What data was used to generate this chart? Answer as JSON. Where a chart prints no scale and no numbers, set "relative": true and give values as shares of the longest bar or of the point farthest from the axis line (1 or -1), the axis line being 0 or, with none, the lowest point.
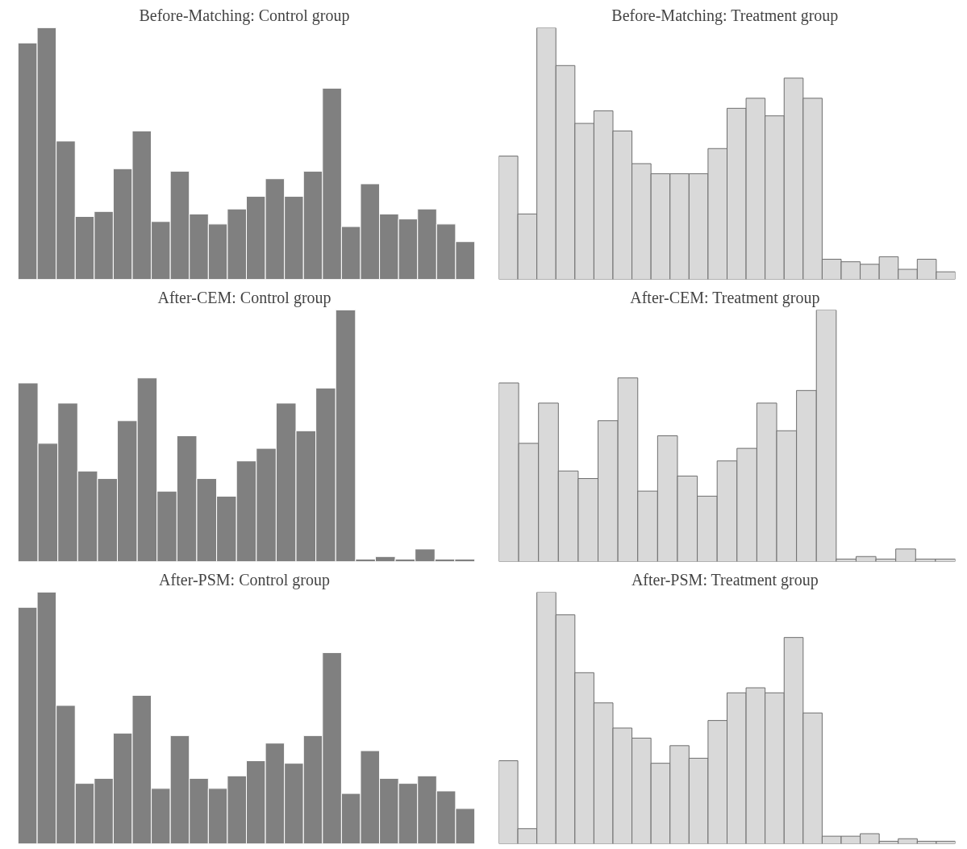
{
  "chart_data": [
    {
      "type": "bar",
      "title": "Before-Matching:  Control group",
      "relative": true,
      "categories": [
        null,
        null,
        null,
        null,
        null,
        null,
        null,
        null,
        null,
        null,
        null,
        null,
        null,
        null,
        null,
        null,
        null,
        null,
        null,
        null,
        null,
        null,
        null,
        null
      ],
      "color": "#808080",
      "values": [
        0.94,
        1,
        0.55,
        0.25,
        0.27,
        0.44,
        0.59,
        0.23,
        0.43,
        0.26,
        0.22,
        0.28,
        0.33,
        0.4,
        0.33,
        0.43,
        0.76,
        0.21,
        0.38,
        0.26,
        0.24,
        0.28,
        0.22,
        0.15
      ]
    },
    {
      "type": "bar",
      "title": "Before-Matching:  Treatment group",
      "relative": true,
      "categories": [
        null,
        null,
        null,
        null,
        null,
        null,
        null,
        null,
        null,
        null,
        null,
        null,
        null,
        null,
        null,
        null,
        null,
        null,
        null,
        null,
        null,
        null,
        null,
        null
      ],
      "color": "#d9d9d9",
      "values": [
        0.49,
        0.26,
        1,
        0.85,
        0.62,
        0.67,
        0.59,
        0.46,
        0.42,
        0.42,
        0.42,
        0.52,
        0.68,
        0.72,
        0.65,
        0.8,
        0.72,
        0.08,
        0.07,
        0.06,
        0.09,
        0.04,
        0.08,
        0.03
      ]
    },
    {
      "type": "bar",
      "title": "After-CEM:  Control group",
      "relative": true,
      "categories": [
        null,
        null,
        null,
        null,
        null,
        null,
        null,
        null,
        null,
        null,
        null,
        null,
        null,
        null,
        null,
        null,
        null,
        null,
        null,
        null,
        null,
        null,
        null
      ],
      "color": "#808080",
      "values": [
        0.71,
        0.47,
        0.63,
        0.36,
        0.33,
        0.56,
        0.73,
        0.28,
        0.5,
        0.33,
        0.26,
        0.4,
        0.45,
        0.63,
        0.52,
        0.69,
        1,
        0.01,
        0.02,
        0.01,
        0.05,
        0.01,
        0.01
      ]
    },
    {
      "type": "bar",
      "title": "After-CEM:  Treatment group",
      "relative": true,
      "categories": [
        null,
        null,
        null,
        null,
        null,
        null,
        null,
        null,
        null,
        null,
        null,
        null,
        null,
        null,
        null,
        null,
        null,
        null,
        null,
        null,
        null,
        null,
        null
      ],
      "color": "#d9d9d9",
      "values": [
        0.71,
        0.47,
        0.63,
        0.36,
        0.33,
        0.56,
        0.73,
        0.28,
        0.5,
        0.34,
        0.26,
        0.4,
        0.45,
        0.63,
        0.52,
        0.68,
        1,
        0.01,
        0.02,
        0.01,
        0.05,
        0.01,
        0.01
      ]
    },
    {
      "type": "bar",
      "title": "After-PSM:  Control group",
      "relative": true,
      "categories": [
        null,
        null,
        null,
        null,
        null,
        null,
        null,
        null,
        null,
        null,
        null,
        null,
        null,
        null,
        null,
        null,
        null,
        null,
        null,
        null,
        null,
        null,
        null,
        null
      ],
      "color": "#808080",
      "values": [
        0.94,
        1,
        0.55,
        0.24,
        0.26,
        0.44,
        0.59,
        0.22,
        0.43,
        0.26,
        0.22,
        0.27,
        0.33,
        0.4,
        0.32,
        0.43,
        0.76,
        0.2,
        0.37,
        0.26,
        0.24,
        0.27,
        0.21,
        0.14
      ]
    },
    {
      "type": "bar",
      "title": "After-PSM:  Treatment group",
      "relative": true,
      "categories": [
        null,
        null,
        null,
        null,
        null,
        null,
        null,
        null,
        null,
        null,
        null,
        null,
        null,
        null,
        null,
        null,
        null,
        null,
        null,
        null,
        null,
        null,
        null,
        null
      ],
      "color": "#d9d9d9",
      "values": [
        0.33,
        0.06,
        1,
        0.91,
        0.68,
        0.56,
        0.46,
        0.42,
        0.32,
        0.39,
        0.34,
        0.49,
        0.6,
        0.62,
        0.6,
        0.82,
        0.52,
        0.03,
        0.03,
        0.04,
        0.01,
        0.02,
        0.01,
        0.01
      ]
    }
  ]
}
